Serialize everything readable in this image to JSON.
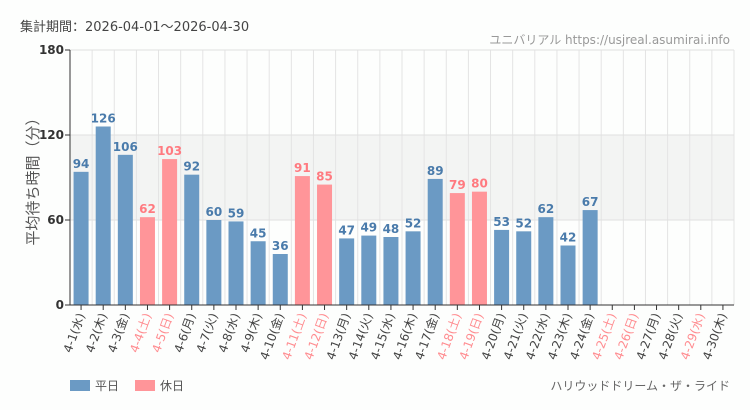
{
  "header": {
    "period": "集計期間：2026-04-01～2026-04-30",
    "source": "ユニバリアル  https://usjreal.asumirai.info"
  },
  "attraction": "ハリウッドドリーム・ザ・ライド",
  "colors": {
    "weekday": "#6b9ac4",
    "holiday": "#ff9599",
    "holiday_label": "#ff8c90",
    "band": "#f3f4f3"
  },
  "chart_data": {
    "type": "bar",
    "ylabel": "平均待ち時間（分）",
    "ylim": [
      0,
      180
    ],
    "yticks": [
      0,
      60,
      120,
      180
    ],
    "grid": true,
    "legend_placement": "bottom-left",
    "legend": [
      {
        "name": "平日",
        "key": "weekday"
      },
      {
        "name": "休日",
        "key": "holiday"
      }
    ],
    "categories": [
      "4-1(水)",
      "4-2(木)",
      "4-3(金)",
      "4-4(土)",
      "4-5(日)",
      "4-6(月)",
      "4-7(火)",
      "4-8(水)",
      "4-9(木)",
      "4-10(金)",
      "4-11(土)",
      "4-12(日)",
      "4-13(月)",
      "4-14(火)",
      "4-15(水)",
      "4-16(木)",
      "4-17(金)",
      "4-18(土)",
      "4-19(日)",
      "4-20(月)",
      "4-21(火)",
      "4-22(水)",
      "4-23(木)",
      "4-24(金)",
      "4-25(土)",
      "4-26(日)",
      "4-27(月)",
      "4-28(火)",
      "4-29(水)",
      "4-30(木)"
    ],
    "holiday": [
      false,
      false,
      false,
      true,
      true,
      false,
      false,
      false,
      false,
      false,
      true,
      true,
      false,
      false,
      false,
      false,
      false,
      true,
      true,
      false,
      false,
      false,
      false,
      false,
      true,
      true,
      false,
      false,
      true,
      false
    ],
    "values": [
      94,
      126,
      106,
      62,
      103,
      92,
      60,
      59,
      45,
      36,
      91,
      85,
      47,
      49,
      48,
      52,
      89,
      79,
      80,
      53,
      52,
      62,
      42,
      67,
      null,
      null,
      null,
      null,
      null,
      null
    ]
  }
}
